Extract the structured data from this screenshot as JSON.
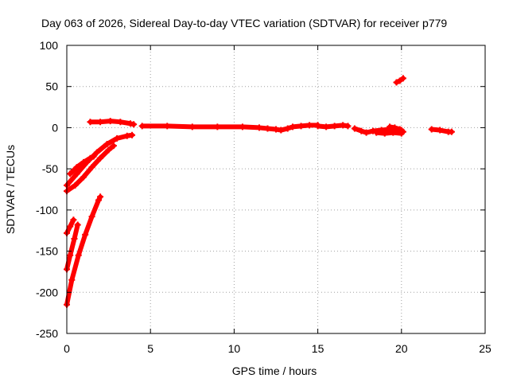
{
  "chart_data": {
    "type": "scatter",
    "title": "Day 063 of 2026, Sidereal Day-to-day VTEC variation (SDTVAR) for receiver p779",
    "xlabel": "GPS time / hours",
    "ylabel": "SDTVAR / TECUs",
    "xlim": [
      0,
      25
    ],
    "ylim": [
      -250,
      100
    ],
    "xticks": [
      0,
      5,
      10,
      15,
      20,
      25
    ],
    "yticks": [
      -250,
      -200,
      -150,
      -100,
      -50,
      0,
      50,
      100
    ],
    "grid": true,
    "legend": "none",
    "series_color": "#ff0000",
    "series": [
      {
        "name": "arc-1",
        "points": [
          [
            0,
            -215
          ],
          [
            0.3,
            -185
          ],
          [
            0.7,
            -155
          ],
          [
            1.1,
            -130
          ],
          [
            1.5,
            -108
          ],
          [
            1.9,
            -88
          ],
          [
            2.0,
            -84
          ]
        ]
      },
      {
        "name": "arc-2",
        "points": [
          [
            0,
            -172
          ],
          [
            0.2,
            -155
          ],
          [
            0.45,
            -135
          ],
          [
            0.65,
            -118
          ]
        ]
      },
      {
        "name": "arc-3",
        "points": [
          [
            0,
            -128
          ],
          [
            0.2,
            -120
          ],
          [
            0.4,
            -112
          ]
        ]
      },
      {
        "name": "arc-4",
        "points": [
          [
            0,
            -77
          ],
          [
            0.5,
            -70
          ],
          [
            1,
            -60
          ],
          [
            1.5,
            -48
          ],
          [
            2,
            -37
          ],
          [
            2.5,
            -27
          ],
          [
            2.8,
            -22
          ]
        ]
      },
      {
        "name": "arc-5",
        "points": [
          [
            0,
            -70
          ],
          [
            0.6,
            -56
          ],
          [
            1.2,
            -42
          ],
          [
            1.8,
            -30
          ],
          [
            2.4,
            -20
          ],
          [
            3,
            -13
          ],
          [
            3.6,
            -10
          ],
          [
            3.9,
            -9
          ]
        ]
      },
      {
        "name": "arc-6",
        "points": [
          [
            0.2,
            -56
          ],
          [
            0.6,
            -48
          ],
          [
            1.0,
            -42
          ],
          [
            1.4,
            -37
          ],
          [
            1.6,
            -35
          ]
        ]
      },
      {
        "name": "arc-7",
        "points": [
          [
            1.4,
            7
          ],
          [
            2,
            7
          ],
          [
            2.6,
            8
          ],
          [
            3.2,
            7
          ],
          [
            3.8,
            5
          ],
          [
            4.0,
            4
          ]
        ]
      },
      {
        "name": "arc-8",
        "points": [
          [
            4.5,
            2
          ],
          [
            6,
            2
          ],
          [
            7.5,
            1
          ],
          [
            9,
            1
          ],
          [
            10.5,
            1
          ],
          [
            11.5,
            0
          ],
          [
            12,
            -1
          ],
          [
            12.5,
            -2
          ],
          [
            12.8,
            -3
          ],
          [
            13.2,
            -1
          ],
          [
            13.5,
            1
          ],
          [
            14,
            2
          ],
          [
            14.5,
            3
          ],
          [
            15,
            3
          ]
        ]
      },
      {
        "name": "arc-9",
        "points": [
          [
            15,
            2
          ],
          [
            15.5,
            1
          ],
          [
            16,
            2
          ],
          [
            16.5,
            3
          ],
          [
            16.8,
            2
          ]
        ]
      },
      {
        "name": "arc-10",
        "points": [
          [
            17.2,
            -1
          ],
          [
            17.6,
            -4
          ],
          [
            17.9,
            -6
          ],
          [
            18.3,
            -4
          ],
          [
            18.8,
            -3
          ],
          [
            19.3,
            -2
          ],
          [
            19.8,
            -3
          ],
          [
            20.1,
            -5
          ]
        ]
      },
      {
        "name": "arc-11",
        "points": [
          [
            18.5,
            -6
          ],
          [
            19,
            -7
          ],
          [
            19.5,
            -6
          ],
          [
            20,
            -7
          ]
        ]
      },
      {
        "name": "arc-12",
        "points": [
          [
            19.3,
            1
          ],
          [
            19.6,
            0
          ],
          [
            19.9,
            -2
          ],
          [
            20.0,
            -3
          ]
        ]
      },
      {
        "name": "arc-13",
        "points": [
          [
            19.7,
            55
          ],
          [
            19.9,
            57
          ],
          [
            20.1,
            60
          ]
        ]
      },
      {
        "name": "arc-14",
        "points": [
          [
            21.8,
            -2
          ],
          [
            22.3,
            -3
          ],
          [
            22.8,
            -5
          ],
          [
            23.0,
            -5
          ]
        ]
      }
    ]
  }
}
